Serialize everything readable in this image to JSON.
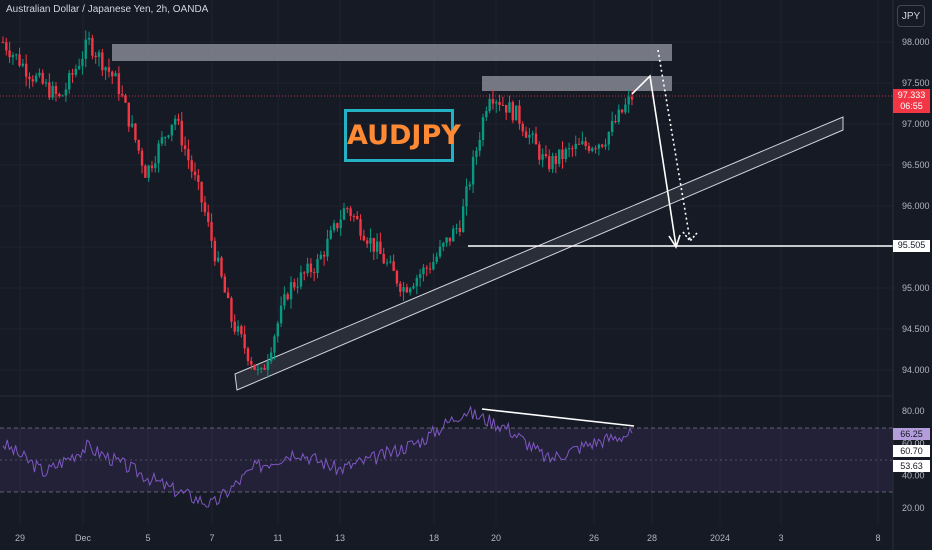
{
  "header": {
    "title": "Australian Dollar / Japanese Yen, 2h, OANDA",
    "currency_button": "JPY"
  },
  "annotation_label": "AUDJPY",
  "price_tags": {
    "current_price": "97.333",
    "countdown": "06:55",
    "target": "95.505"
  },
  "rsi_tags": {
    "value": "66.25",
    "ma1": "60.70",
    "ma2": "53.63"
  },
  "colors": {
    "up": "#089981",
    "down": "#f23645",
    "background": "#161a25",
    "rsi": "#7e57c2",
    "label_text": "#ff8a33",
    "label_border": "#22b2c4"
  },
  "chart_data": [
    {
      "type": "candlestick",
      "title": "Australian Dollar / Japanese Yen, 2h, OANDA",
      "y_axis": {
        "ticks": [
          94.0,
          94.5,
          95.0,
          95.5,
          96.0,
          96.5,
          97.0,
          97.5,
          98.0
        ],
        "tick_labels": [
          "94.000",
          "94.500",
          "95.000",
          "95.500",
          "96.000",
          "96.500",
          "97.000",
          "97.500",
          "98.000"
        ],
        "range": [
          93.85,
          98.3
        ]
      },
      "x_axis": {
        "tick_labels": [
          "29",
          "Dec",
          "5",
          "7",
          "11",
          "13",
          "18",
          "20",
          "26",
          "28",
          "2024",
          "3",
          "8"
        ]
      },
      "price_path": [
        {
          "t": "29",
          "p": 98.0
        },
        {
          "t": "Nov30",
          "p": 97.6
        },
        {
          "t": "Dec",
          "p": 97.3
        },
        {
          "t": "Dec4",
          "p": 98.0
        },
        {
          "t": "5",
          "p": 97.5
        },
        {
          "t": "6",
          "p": 96.4
        },
        {
          "t": "6b",
          "p": 97.1
        },
        {
          "t": "7",
          "p": 96.0
        },
        {
          "t": "7b",
          "p": 94.6
        },
        {
          "t": "8",
          "p": 93.9
        },
        {
          "t": "8b",
          "p": 95.0
        },
        {
          "t": "11",
          "p": 95.3
        },
        {
          "t": "12",
          "p": 96.0
        },
        {
          "t": "13",
          "p": 95.5
        },
        {
          "t": "14",
          "p": 95.0
        },
        {
          "t": "15",
          "p": 95.3
        },
        {
          "t": "18",
          "p": 95.8
        },
        {
          "t": "19",
          "p": 97.4
        },
        {
          "t": "20",
          "p": 97.1
        },
        {
          "t": "21",
          "p": 96.5
        },
        {
          "t": "22",
          "p": 96.7
        },
        {
          "t": "26",
          "p": 96.8
        },
        {
          "t": "27",
          "p": 97.33
        }
      ],
      "annotations": {
        "resistance_zone_upper": [
          97.75,
          97.95
        ],
        "resistance_zone_lower": [
          97.33,
          97.5
        ],
        "target_level": 95.505,
        "current_price": 97.333,
        "trendline_channel": "ascending support channel"
      }
    },
    {
      "type": "line",
      "name": "RSI",
      "y_axis": {
        "ticks": [
          20,
          40,
          60,
          80
        ],
        "tick_labels": [
          "20.00",
          "40.00",
          "60.00",
          "80.00"
        ],
        "range": [
          15,
          85
        ]
      },
      "bands": [
        30,
        70
      ],
      "current_value": 66.25,
      "path": [
        {
          "t": "29",
          "v": 60
        },
        {
          "t": "Dec",
          "v": 42
        },
        {
          "t": "5",
          "v": 58
        },
        {
          "t": "6",
          "v": 45
        },
        {
          "t": "7",
          "v": 32
        },
        {
          "t": "8",
          "v": 22
        },
        {
          "t": "8b",
          "v": 45
        },
        {
          "t": "11",
          "v": 55
        },
        {
          "t": "13",
          "v": 44
        },
        {
          "t": "15",
          "v": 52
        },
        {
          "t": "18",
          "v": 62
        },
        {
          "t": "19",
          "v": 80
        },
        {
          "t": "20",
          "v": 70
        },
        {
          "t": "22",
          "v": 50
        },
        {
          "t": "26",
          "v": 60
        },
        {
          "t": "27",
          "v": 66.25
        }
      ]
    }
  ]
}
